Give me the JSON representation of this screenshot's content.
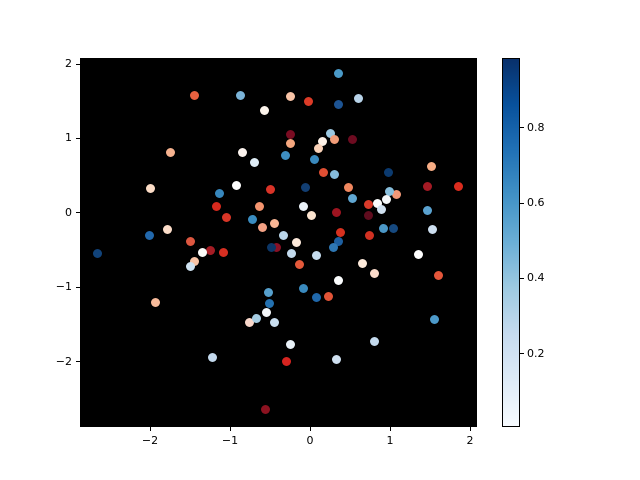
{
  "chart_data": {
    "type": "scatter",
    "title": "",
    "xlabel": "",
    "ylabel": "",
    "grid": false,
    "background_color": "#000000",
    "figure_background": "#ffffff",
    "marker_diameter_px": 9,
    "xlim": [
      -2.875,
      2.0875
    ],
    "ylim": [
      -2.88,
      2.08
    ],
    "x_ticks": [
      -2,
      -1,
      0,
      1,
      2
    ],
    "y_ticks": [
      -2,
      -1,
      0,
      1,
      2
    ],
    "layout": {
      "axes_rect": [
        80,
        58,
        397,
        369
      ],
      "colorbar_rect": [
        502,
        58,
        18,
        369
      ]
    },
    "colorbar": {
      "cmap": "Blues",
      "orientation": "vertical",
      "vmin": 0.005,
      "vmax": 0.985,
      "ticks": [
        0.2,
        0.4,
        0.6,
        0.8
      ],
      "tick_labels": [
        "0.2",
        "0.4",
        "0.6",
        "0.8"
      ],
      "gradient_stops": [
        "#f7fbff",
        "#deebf7",
        "#c6dbef",
        "#9ecae1",
        "#6baed6",
        "#4292c6",
        "#2171b5",
        "#08519c",
        "#08306b"
      ]
    },
    "points": [
      {
        "x": 0.35,
        "y": 1.87,
        "color": "#4a9ac8"
      },
      {
        "x": -0.87,
        "y": 1.58,
        "color": "#7ab3d8"
      },
      {
        "x": -1.44,
        "y": 1.57,
        "color": "#e8603f"
      },
      {
        "x": -0.25,
        "y": 1.56,
        "color": "#f8c3a6"
      },
      {
        "x": 0.6,
        "y": 1.53,
        "color": "#b8d3e9"
      },
      {
        "x": -0.02,
        "y": 1.49,
        "color": "#dc3b27"
      },
      {
        "x": 0.36,
        "y": 1.46,
        "color": "#1d5493"
      },
      {
        "x": -0.57,
        "y": 1.37,
        "color": "#fdf4ec"
      },
      {
        "x": 0.25,
        "y": 1.07,
        "color": "#9cc7e0"
      },
      {
        "x": -0.25,
        "y": 1.05,
        "color": "#7a0c22"
      },
      {
        "x": 0.31,
        "y": 0.99,
        "color": "#f29d79"
      },
      {
        "x": 0.53,
        "y": 0.98,
        "color": "#6d0b20"
      },
      {
        "x": 0.15,
        "y": 0.96,
        "color": "#fdf1e7"
      },
      {
        "x": -0.25,
        "y": 0.93,
        "color": "#f5a77f"
      },
      {
        "x": 0.1,
        "y": 0.86,
        "color": "#fad2b8"
      },
      {
        "x": -1.74,
        "y": 0.81,
        "color": "#f6b28f"
      },
      {
        "x": -0.84,
        "y": 0.81,
        "color": "#fbf3ee"
      },
      {
        "x": -0.31,
        "y": 0.77,
        "color": "#3e8ec0"
      },
      {
        "x": 0.06,
        "y": 0.71,
        "color": "#3a8abe"
      },
      {
        "x": -0.69,
        "y": 0.67,
        "color": "#dfedf6"
      },
      {
        "x": 1.52,
        "y": 0.62,
        "color": "#f7ad85"
      },
      {
        "x": 0.98,
        "y": 0.54,
        "color": "#0b3a6f"
      },
      {
        "x": 0.17,
        "y": 0.54,
        "color": "#e04f33"
      },
      {
        "x": 0.31,
        "y": 0.51,
        "color": "#85bbdb"
      },
      {
        "x": -0.92,
        "y": 0.37,
        "color": "#fefefe"
      },
      {
        "x": 1.47,
        "y": 0.35,
        "color": "#a31a24"
      },
      {
        "x": 1.85,
        "y": 0.35,
        "color": "#da2c1e"
      },
      {
        "x": -0.06,
        "y": 0.34,
        "color": "#123e72"
      },
      {
        "x": 0.48,
        "y": 0.34,
        "color": "#f0875f"
      },
      {
        "x": -1.99,
        "y": 0.32,
        "color": "#fcdcc6"
      },
      {
        "x": -0.5,
        "y": 0.31,
        "color": "#d93327"
      },
      {
        "x": -1.13,
        "y": 0.26,
        "color": "#3787bd"
      },
      {
        "x": 1.08,
        "y": 0.25,
        "color": "#f29877"
      },
      {
        "x": 0.99,
        "y": 0.29,
        "color": "#87bedc"
      },
      {
        "x": 0.53,
        "y": 0.19,
        "color": "#60a7d2"
      },
      {
        "x": 0.96,
        "y": 0.18,
        "color": "#f4f7f9"
      },
      {
        "x": 0.84,
        "y": 0.13,
        "color": "#fcfdfd"
      },
      {
        "x": 0.73,
        "y": 0.11,
        "color": "#d93b2b"
      },
      {
        "x": -0.63,
        "y": 0.08,
        "color": "#f4946e"
      },
      {
        "x": -1.17,
        "y": 0.08,
        "color": "#d6291d"
      },
      {
        "x": -0.08,
        "y": 0.08,
        "color": "#ebf2f9"
      },
      {
        "x": 0.89,
        "y": 0.05,
        "color": "#cfe0ef"
      },
      {
        "x": 1.47,
        "y": 0.03,
        "color": "#5aa2d0"
      },
      {
        "x": 0.33,
        "y": 0.0,
        "color": "#9e1420"
      },
      {
        "x": 0.73,
        "y": -0.03,
        "color": "#5f0c1e"
      },
      {
        "x": 0.02,
        "y": -0.03,
        "color": "#fce4d0"
      },
      {
        "x": -1.05,
        "y": -0.07,
        "color": "#d93627"
      },
      {
        "x": -0.72,
        "y": -0.09,
        "color": "#3a8cc0"
      },
      {
        "x": -0.45,
        "y": -0.15,
        "color": "#f9b695"
      },
      {
        "x": -0.6,
        "y": -0.2,
        "color": "#f4a285"
      },
      {
        "x": 0.92,
        "y": -0.21,
        "color": "#4b97c6"
      },
      {
        "x": 1.04,
        "y": -0.21,
        "color": "#16497f"
      },
      {
        "x": 1.53,
        "y": -0.22,
        "color": "#cddff0"
      },
      {
        "x": -1.78,
        "y": -0.22,
        "color": "#fcddc9"
      },
      {
        "x": 0.38,
        "y": -0.27,
        "color": "#d6311f"
      },
      {
        "x": -0.33,
        "y": -0.3,
        "color": "#bad6ea"
      },
      {
        "x": -2.01,
        "y": -0.3,
        "color": "#2268ac"
      },
      {
        "x": 0.74,
        "y": -0.31,
        "color": "#d13122"
      },
      {
        "x": -1.5,
        "y": -0.38,
        "color": "#dd5740"
      },
      {
        "x": 0.35,
        "y": -0.39,
        "color": "#1d5fa0"
      },
      {
        "x": -0.17,
        "y": -0.4,
        "color": "#fce9da"
      },
      {
        "x": 0.29,
        "y": -0.46,
        "color": "#2e77b3"
      },
      {
        "x": -0.42,
        "y": -0.47,
        "color": "#8a1125"
      },
      {
        "x": -0.48,
        "y": -0.46,
        "color": "#0c3667"
      },
      {
        "x": -1.24,
        "y": -0.51,
        "color": "#a51c24"
      },
      {
        "x": -1.08,
        "y": -0.53,
        "color": "#d62f22"
      },
      {
        "x": -1.35,
        "y": -0.54,
        "color": "#fbfaf8"
      },
      {
        "x": -2.66,
        "y": -0.55,
        "color": "#11437a"
      },
      {
        "x": -0.23,
        "y": -0.55,
        "color": "#c2daed"
      },
      {
        "x": 1.36,
        "y": -0.56,
        "color": "#fefefe"
      },
      {
        "x": 0.08,
        "y": -0.58,
        "color": "#c5dcee"
      },
      {
        "x": -1.44,
        "y": -0.65,
        "color": "#f8c3a5"
      },
      {
        "x": 0.65,
        "y": -0.68,
        "color": "#fdeadb"
      },
      {
        "x": -0.13,
        "y": -0.69,
        "color": "#e4593a"
      },
      {
        "x": -1.49,
        "y": -0.72,
        "color": "#cfe2f1"
      },
      {
        "x": 0.81,
        "y": -0.81,
        "color": "#fcdccb"
      },
      {
        "x": 1.6,
        "y": -0.84,
        "color": "#e4563a"
      },
      {
        "x": 0.36,
        "y": -0.91,
        "color": "#fbfdfe"
      },
      {
        "x": -0.08,
        "y": -1.02,
        "color": "#3a8abe"
      },
      {
        "x": -0.52,
        "y": -1.07,
        "color": "#56a0cd"
      },
      {
        "x": 0.23,
        "y": -1.12,
        "color": "#e25437"
      },
      {
        "x": 0.08,
        "y": -1.14,
        "color": "#2068ab"
      },
      {
        "x": -1.93,
        "y": -1.21,
        "color": "#f8bb9b"
      },
      {
        "x": -0.51,
        "y": -1.22,
        "color": "#2471b0"
      },
      {
        "x": -0.55,
        "y": -1.34,
        "color": "#f3f7fa"
      },
      {
        "x": 1.56,
        "y": -1.43,
        "color": "#4d9aca"
      },
      {
        "x": -0.76,
        "y": -1.47,
        "color": "#fad8cb"
      },
      {
        "x": -0.67,
        "y": -1.42,
        "color": "#a6cde3"
      },
      {
        "x": -0.44,
        "y": -1.48,
        "color": "#cadff0"
      },
      {
        "x": 0.81,
        "y": -1.73,
        "color": "#c4daee"
      },
      {
        "x": -0.24,
        "y": -1.77,
        "color": "#e8f1f8"
      },
      {
        "x": -1.22,
        "y": -1.94,
        "color": "#c3d9ed"
      },
      {
        "x": -0.3,
        "y": -2.0,
        "color": "#d62420"
      },
      {
        "x": 0.33,
        "y": -1.97,
        "color": "#cfe0f0"
      },
      {
        "x": -0.56,
        "y": -2.64,
        "color": "#8c1220"
      }
    ]
  }
}
